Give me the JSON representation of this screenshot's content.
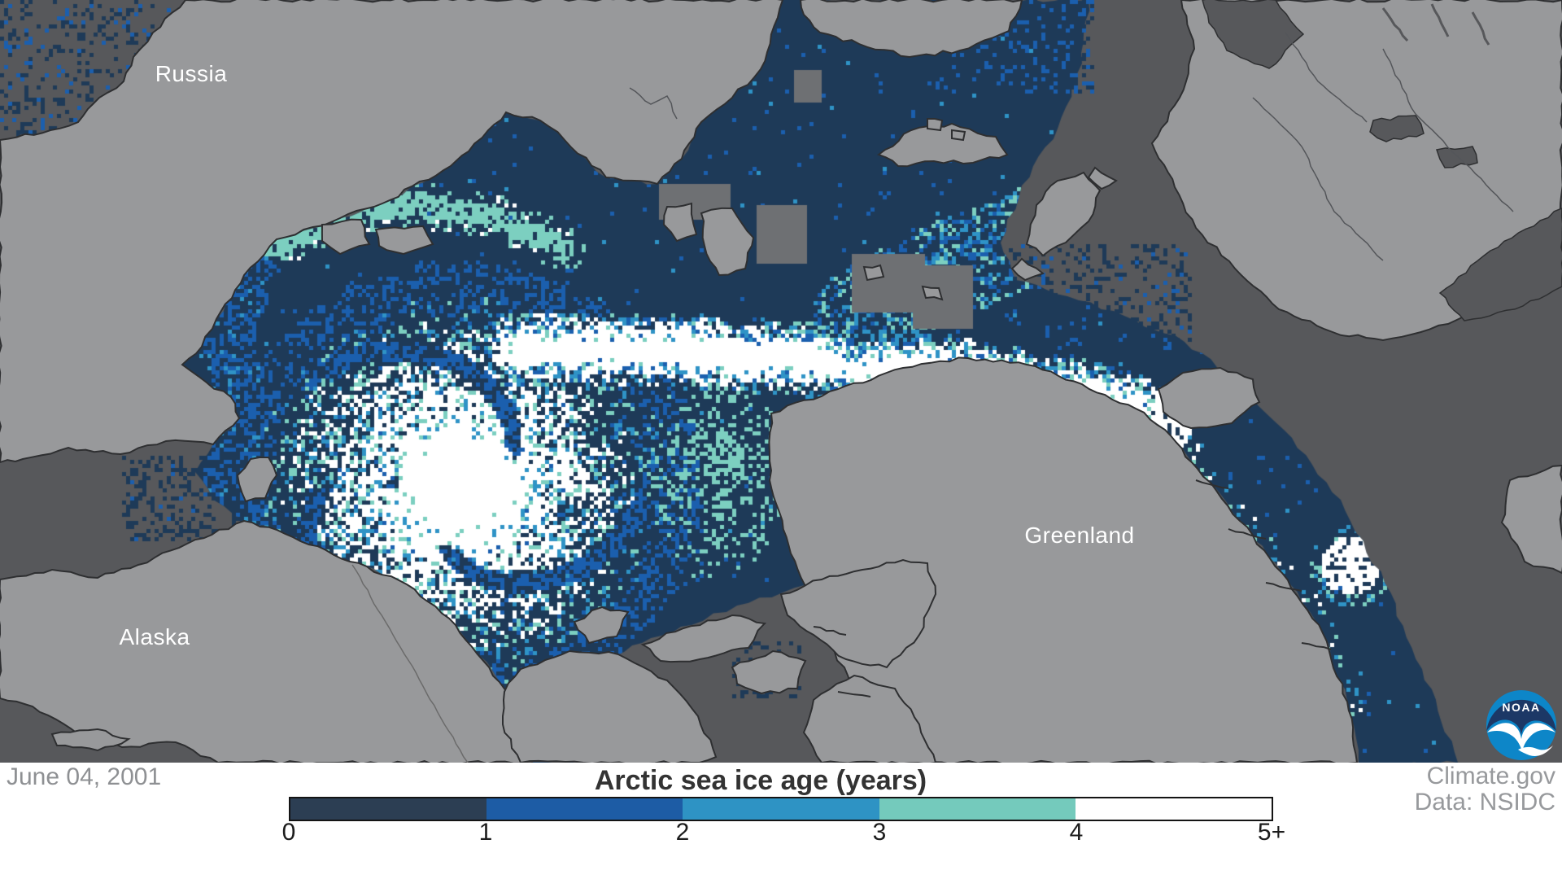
{
  "map": {
    "labels": [
      {
        "text": "Russia"
      },
      {
        "text": "Alaska"
      },
      {
        "text": "Greenland"
      }
    ],
    "logo": {
      "text": "NOAA",
      "navy": "#1c3866",
      "blue": "#0d86c8",
      "gull": "#ffffff"
    },
    "palette": {
      "ocean": "#57585b",
      "land": "#98999b",
      "coast": "#2e2f31",
      "no_data": "#6e7073",
      "river": "#54565a",
      "ice_0_1": "#1e3a58",
      "ice_1_2": "#1b5fae",
      "ice_2_3": "#2f93c6",
      "ice_3_4": "#7ccfc0",
      "ice_5plus": "#ffffff",
      "label_text": "#ffffff"
    }
  },
  "footer": {
    "date": "June 04, 2001",
    "credits": [
      "Climate.gov",
      "Data: NSIDC"
    ],
    "background": "#ffffff"
  },
  "legend": {
    "title": "Arctic sea ice age (years)",
    "ticks": [
      "0",
      "1",
      "2",
      "3",
      "4",
      "5+"
    ],
    "colors": [
      "#2c3e53",
      "#1d5ca5",
      "#2e93c4",
      "#74cabc",
      "#ffffff"
    ]
  },
  "chart_data": {
    "type": "heatmap",
    "title": "Arctic sea ice age (years)",
    "date_shown": "June 04, 2001",
    "categories": [
      "0-1 years",
      "1-2 years",
      "2-3 years",
      "3-4 years",
      "4-5+ years"
    ],
    "colors": [
      "#2c3e53",
      "#1d5ca5",
      "#2e93c4",
      "#74cabc",
      "#ffffff"
    ],
    "legend_ticks": [
      "0",
      "1",
      "2",
      "3",
      "4",
      "5+"
    ],
    "legend_axis_range": [
      0,
      5
    ],
    "provider": "Climate.gov",
    "source": "Data: NSIDC",
    "regions_labeled": [
      "Russia",
      "Alaska",
      "Greenland"
    ],
    "description": "Polar map of Arctic sea ice age; oldest (5+ yr, white) ice concentrated in Beaufort/central Arctic with a tongue along north Greenland; first-year ice (dark navy) surrounds it; gray tones are land (light) and open ocean (dark)."
  }
}
